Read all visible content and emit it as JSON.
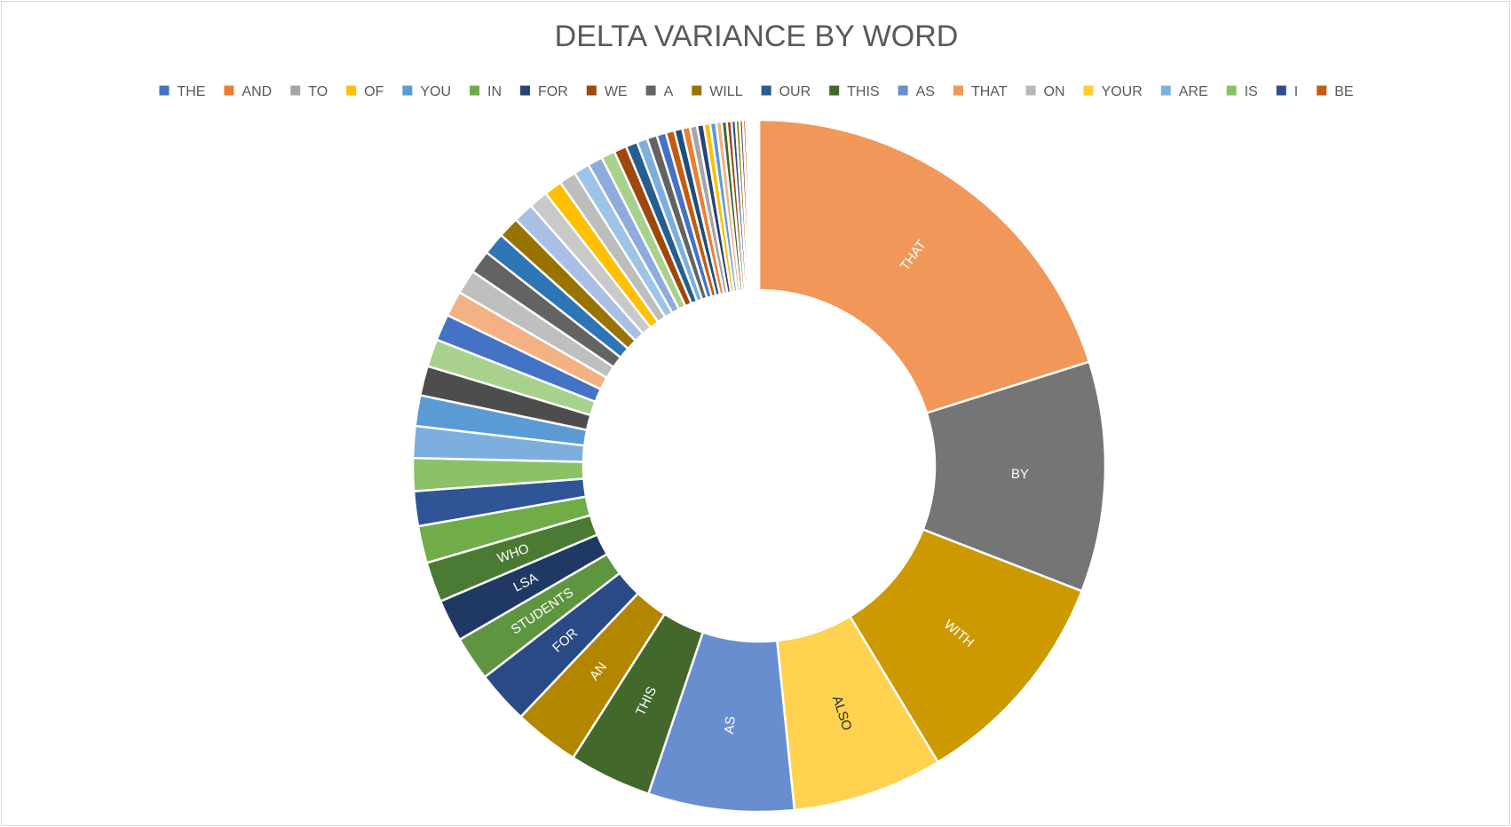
{
  "chart_data": {
    "type": "pie",
    "title": "DELTA VARIANCE BY WORD",
    "legend_position": "top",
    "legend": [
      "THE",
      "AND",
      "TO",
      "OF",
      "YOU",
      "IN",
      "FOR",
      "WE",
      "A",
      "WILL",
      "OUR",
      "THIS",
      "AS",
      "THAT",
      "ON",
      "YOUR",
      "ARE",
      "IS",
      "I",
      "BE"
    ],
    "palette": [
      "#4472C4",
      "#ED7D31",
      "#A5A5A5",
      "#FFC000",
      "#5B9BD5",
      "#70AD47",
      "#264478",
      "#9E480E",
      "#636363",
      "#997300",
      "#255E91",
      "#43682B",
      "#698ED0",
      "#F1975A",
      "#B7B7B7",
      "#FFCD33",
      "#7CAFDD",
      "#8CC168",
      "#2E4F8F",
      "#C55A11",
      "#9DB2E0",
      "#F4B183",
      "#C9C9C9",
      "#FFD966",
      "#9DC3E6",
      "#A9D18E",
      "#5E5E5E",
      "#1F4E79"
    ],
    "slices": [
      {
        "label": "THAT",
        "value": 20.4,
        "color": "#F1975A",
        "label_color": "#ffffff"
      },
      {
        "label": "BY",
        "value": 10.9,
        "color": "#757575",
        "label_color": "#ffffff"
      },
      {
        "label": "WITH",
        "value": 10.6,
        "color": "#CC9A00",
        "label_color": "#ffffff"
      },
      {
        "label": "ALSO",
        "value": 7.1,
        "color": "#FFD34F",
        "label_color": "#262626"
      },
      {
        "label": "AS",
        "value": 6.9,
        "color": "#698ED0",
        "label_color": "#ffffff"
      },
      {
        "label": "THIS",
        "value": 3.9,
        "color": "#43682B",
        "label_color": "#ffffff"
      },
      {
        "label": "AN",
        "value": 3.1,
        "color": "#B38600",
        "label_color": "#ffffff"
      },
      {
        "label": "FOR",
        "value": 2.5,
        "color": "#2A4A85",
        "label_color": "#ffffff"
      },
      {
        "label": "STUDENTS",
        "value": 2.1,
        "color": "#5E9640",
        "label_color": "#ffffff"
      },
      {
        "label": "LSA",
        "value": 2.0,
        "color": "#203864",
        "label_color": "#ffffff"
      },
      {
        "label": "WHO",
        "value": 1.9,
        "color": "#4A7A33",
        "label_color": "#ffffff"
      },
      {
        "label": "",
        "value": 1.75,
        "color": "#70AD47"
      },
      {
        "label": "",
        "value": 1.65,
        "color": "#2F5597"
      },
      {
        "label": "",
        "value": 1.55,
        "color": "#8CC168"
      },
      {
        "label": "",
        "value": 1.5,
        "color": "#7CAFDD"
      },
      {
        "label": "",
        "value": 1.45,
        "color": "#5B9BD5"
      },
      {
        "label": "",
        "value": 1.4,
        "color": "#4D4D4D"
      },
      {
        "label": "",
        "value": 1.3,
        "color": "#A9D18E"
      },
      {
        "label": "",
        "value": 1.25,
        "color": "#4472C4"
      },
      {
        "label": "",
        "value": 1.2,
        "color": "#F4B183"
      },
      {
        "label": "",
        "value": 1.15,
        "color": "#BFBFBF"
      },
      {
        "label": "",
        "value": 1.1,
        "color": "#636363"
      },
      {
        "label": "",
        "value": 1.05,
        "color": "#2E75B6"
      },
      {
        "label": "",
        "value": 1.0,
        "color": "#997300"
      },
      {
        "label": "",
        "value": 0.95,
        "color": "#A9BFE3"
      },
      {
        "label": "",
        "value": 0.9,
        "color": "#C9C9C9"
      },
      {
        "label": "",
        "value": 0.85,
        "color": "#FFC000"
      },
      {
        "label": "",
        "value": 0.8,
        "color": "#BDBDBD"
      },
      {
        "label": "",
        "value": 0.75,
        "color": "#9DC3E6"
      },
      {
        "label": "",
        "value": 0.7,
        "color": "#8FAADC"
      },
      {
        "label": "",
        "value": 0.65,
        "color": "#A9D18E"
      },
      {
        "label": "",
        "value": 0.6,
        "color": "#9E480E"
      },
      {
        "label": "",
        "value": 0.55,
        "color": "#255E91"
      },
      {
        "label": "",
        "value": 0.5,
        "color": "#7CAFDD"
      },
      {
        "label": "",
        "value": 0.47,
        "color": "#636363"
      },
      {
        "label": "",
        "value": 0.44,
        "color": "#4472C4"
      },
      {
        "label": "",
        "value": 0.41,
        "color": "#C55A11"
      },
      {
        "label": "",
        "value": 0.38,
        "color": "#1F4E79"
      },
      {
        "label": "",
        "value": 0.36,
        "color": "#ED7D31"
      },
      {
        "label": "",
        "value": 0.34,
        "color": "#A5A5A5"
      },
      {
        "label": "",
        "value": 0.32,
        "color": "#264478"
      },
      {
        "label": "",
        "value": 0.3,
        "color": "#FFC000"
      },
      {
        "label": "",
        "value": 0.28,
        "color": "#5B9BD5"
      },
      {
        "label": "",
        "value": 0.26,
        "color": "#F4B183"
      },
      {
        "label": "",
        "value": 0.24,
        "color": "#43682B"
      },
      {
        "label": "",
        "value": 0.22,
        "color": "#9E480E"
      },
      {
        "label": "",
        "value": 0.2,
        "color": "#2E4F8F"
      },
      {
        "label": "",
        "value": 0.18,
        "color": "#997300"
      },
      {
        "label": "",
        "value": 0.16,
        "color": "#4D4D4D"
      },
      {
        "label": "",
        "value": 0.14,
        "color": "#C55A11"
      },
      {
        "label": "",
        "value": 0.12,
        "color": "#A9D18E"
      },
      {
        "label": "",
        "value": 0.1,
        "color": "#FFD966"
      },
      {
        "label": "",
        "value": 0.09,
        "color": "#9DC3E6"
      },
      {
        "label": "",
        "value": 0.08,
        "color": "#70AD47"
      },
      {
        "label": "",
        "value": 0.07,
        "color": "#BFBFBF"
      },
      {
        "label": "",
        "value": 0.06,
        "color": "#ED7D31"
      },
      {
        "label": "",
        "value": 0.05,
        "color": "#4472C4"
      },
      {
        "label": "",
        "value": 0.04,
        "color": "#997300"
      }
    ]
  }
}
